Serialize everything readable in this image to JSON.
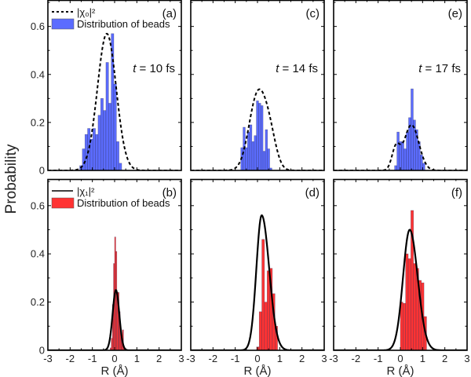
{
  "chart_data": {
    "type": "bar",
    "ylabel": "Probability",
    "xlabel": "R (Å)",
    "xlim": [
      -3,
      3
    ],
    "ylim": [
      0,
      0.7
    ],
    "xticks": [
      "-3",
      "-2",
      "-1",
      "0",
      "1",
      "2",
      "3"
    ],
    "yticks": [
      "0",
      "0.2",
      "0.4",
      "0.6"
    ],
    "colors": {
      "ground": "#5b6cff",
      "excited": "#ff3333",
      "curve": "#000000"
    },
    "legend": {
      "top": {
        "curve": "|χ₀|²",
        "bars": "Distribution of beads"
      },
      "bottom": {
        "curve": "|χ₁|²",
        "bars": "Distribution of beads"
      }
    },
    "panels": [
      {
        "id": "a",
        "label": "(a)",
        "row": 0,
        "col": 0,
        "time": "t = 10 fs",
        "time_t": "t",
        "time_rest": " = 10 fs",
        "state": "ground",
        "curve_style": "dashed",
        "legend": "top",
        "curve": {
          "mu": -0.35,
          "sigma": 0.42,
          "peak": 0.57
        },
        "bins": {
          "start": -1.57,
          "width": 0.118,
          "values": [
            0.02,
            0.09,
            0.15,
            0.175,
            0.13,
            0.175,
            0.15,
            0.23,
            0.3,
            0.25,
            0.45,
            0.28,
            0.57,
            0.36,
            0.12,
            0.03
          ]
        }
      },
      {
        "id": "c",
        "label": "(c)",
        "row": 0,
        "col": 1,
        "time": "t = 14 fs",
        "time_t": "t",
        "time_rest": " = 14 fs",
        "state": "ground",
        "curve_style": "dashed",
        "legend": null,
        "curve": {
          "mu": 0.0,
          "sigma": 0.38,
          "peak": 0.31,
          "mu2": 0.55,
          "sigma2": 0.3,
          "peak2": 0.12
        },
        "bins": {
          "start": -0.75,
          "width": 0.1,
          "values": [
            0.095,
            0.18,
            0.095,
            0.16,
            0.19,
            0.12,
            0.145,
            0.29,
            0.28,
            0.27,
            0.08,
            0.17,
            0.09,
            0.01
          ]
        }
      },
      {
        "id": "e",
        "label": "(e)",
        "row": 0,
        "col": 2,
        "time": "t = 17 fs",
        "time_t": "t",
        "time_rest": " = 17 fs",
        "state": "ground",
        "curve_style": "dashed",
        "legend": null,
        "curve": {
          "mu": 0.5,
          "sigma": 0.33,
          "peak": 0.19,
          "mu2": -0.2,
          "sigma2": 0.18,
          "peak2": 0.09
        },
        "bins": {
          "start": -0.26,
          "width": 0.105,
          "values": [
            0.02,
            0.16,
            0.12,
            0.12,
            0.09,
            0.16,
            0.22,
            0.34,
            0.21,
            0.17,
            0.12,
            0.065,
            0.03
          ]
        }
      },
      {
        "id": "b",
        "label": "(b)",
        "row": 1,
        "col": 0,
        "time": null,
        "state": "excited",
        "curve_style": "solid",
        "legend": "bottom",
        "curve": {
          "mu": 0.06,
          "sigma": 0.15,
          "peak": 0.25
        },
        "bins": {
          "start": -0.2,
          "width": 0.05,
          "values": [
            0.01,
            0.05,
            0.19,
            0.36,
            0.47,
            0.41,
            0.24,
            0.24,
            0.16,
            0.08,
            0.05,
            0.085,
            0.01
          ]
        }
      },
      {
        "id": "d",
        "label": "(d)",
        "row": 1,
        "col": 1,
        "time": null,
        "state": "excited",
        "curve_style": "solid",
        "legend": null,
        "curve": {
          "mu": 0.19,
          "sigma": 0.24,
          "peak": 0.56,
          "skew": 1.4
        },
        "bins": {
          "start": -0.04,
          "width": 0.118,
          "values": [
            0.014,
            0.16,
            0.46,
            0.2,
            0.33,
            0.34,
            0.235,
            0.1
          ]
        }
      },
      {
        "id": "f",
        "label": "(f)",
        "row": 1,
        "col": 2,
        "time": null,
        "state": "excited",
        "curve_style": "solid",
        "legend": null,
        "curve": {
          "mu": 0.42,
          "sigma": 0.3,
          "peak": 0.5,
          "skew": 1.2
        },
        "bins": {
          "start": 0.0,
          "width": 0.118,
          "values": [
            0.2,
            0.195,
            0.4,
            0.38,
            0.58,
            0.36,
            0.34,
            0.29,
            0.28,
            0.14
          ]
        }
      }
    ]
  }
}
